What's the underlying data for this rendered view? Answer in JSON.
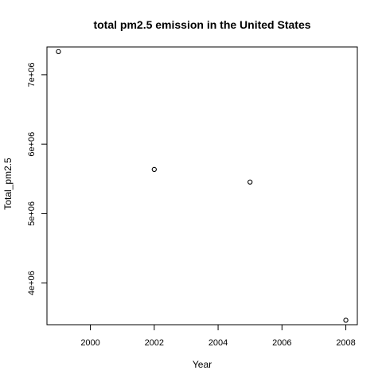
{
  "chart_data": {
    "type": "scatter",
    "title": "total pm2.5 emission in the United States",
    "xlabel": "Year",
    "ylabel": "Total_pm2.5",
    "x": [
      1999,
      2002,
      2005,
      2008
    ],
    "y": [
      7332967,
      5635780,
      5454703,
      3464206
    ],
    "xlim": [
      1999,
      2008
    ],
    "ylim": [
      3400000,
      7400000
    ],
    "x_ticks": [
      2000,
      2002,
      2004,
      2006,
      2008
    ],
    "x_tick_labels": [
      "2000",
      "2002",
      "2004",
      "2006",
      "2008"
    ],
    "y_ticks": [
      4000000,
      5000000,
      6000000,
      7000000
    ],
    "y_tick_labels": [
      "4e+06",
      "5e+06",
      "6e+06",
      "7e+06"
    ],
    "grid": false,
    "marker": "open-circle",
    "marker_color": "#000000"
  }
}
